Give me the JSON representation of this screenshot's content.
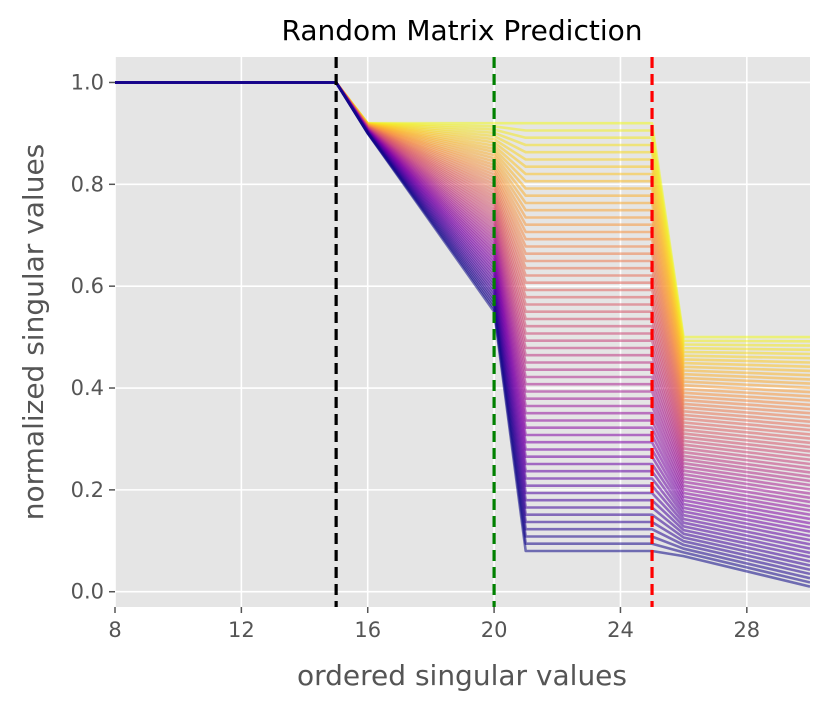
{
  "chart_data": {
    "type": "line",
    "title": "Random Matrix Prediction",
    "xlabel": "ordered singular values",
    "ylabel": "normalized singular values",
    "xlim": [
      8,
      30
    ],
    "ylim": [
      -0.03,
      1.05
    ],
    "xticks": [
      "8",
      "12",
      "16",
      "20",
      "24",
      "28"
    ],
    "yticks": [
      "0.0",
      "0.2",
      "0.4",
      "0.6",
      "0.8",
      "1.0"
    ],
    "grid": true,
    "legend": "none",
    "colormap": "plasma",
    "background": "#e5e5e5",
    "vlines": [
      {
        "x": 15,
        "color": "#000000",
        "style": "dashed"
      },
      {
        "x": 20,
        "color": "#008000",
        "style": "dashed"
      },
      {
        "x": 25,
        "color": "#ff0000",
        "style": "dashed"
      }
    ],
    "series_summary": {
      "count": 60,
      "x": [
        8,
        15,
        16,
        20,
        21,
        25,
        26,
        30
      ],
      "first_series": [
        1.0,
        1.0,
        0.92,
        0.92,
        0.92,
        0.92,
        0.5,
        0.5
      ],
      "last_series": [
        1.0,
        1.0,
        0.9,
        0.55,
        0.08,
        0.08,
        0.07,
        0.01
      ]
    }
  }
}
